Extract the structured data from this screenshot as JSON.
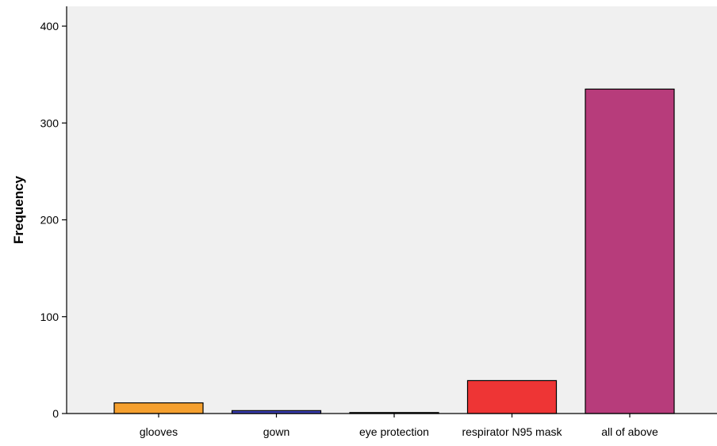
{
  "chart_data": {
    "type": "bar",
    "categories": [
      "glooves",
      "gown",
      "eye protection",
      "respirator N95 mask",
      "all of above"
    ],
    "values": [
      11,
      3,
      1,
      34,
      335
    ],
    "colors": [
      "#f5a02f",
      "#3a3fb3",
      "#4a8a4a",
      "#ee3535",
      "#b73c7b"
    ],
    "title": "",
    "xlabel": "",
    "ylabel": "Frequency",
    "ylim": [
      0,
      400
    ],
    "yticks": [
      0,
      100,
      200,
      300,
      400
    ],
    "grid": false,
    "plot_background": "#f0f0f0",
    "bar_stroke": "#000000"
  }
}
